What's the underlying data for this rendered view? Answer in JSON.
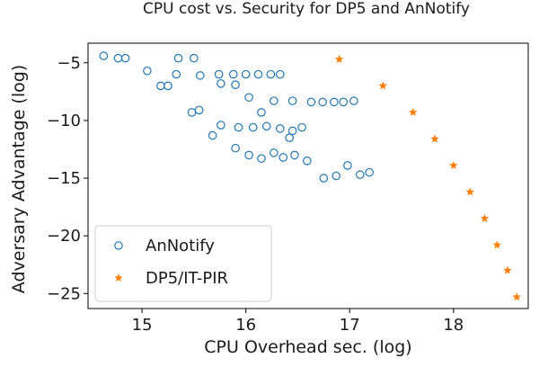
{
  "chart_data": {
    "type": "scatter",
    "title": "CPU cost vs. Security for DP5 and AnNotify",
    "xlabel": "CPU Overhead sec. (log)",
    "ylabel": "Adversary Advantage (log)",
    "xlim": [
      14.48,
      18.72
    ],
    "ylim": [
      -26.3,
      -3.3
    ],
    "xticks": [
      15,
      16,
      17,
      18
    ],
    "yticks": [
      -5,
      -10,
      -15,
      -20,
      -25
    ],
    "xtick_labels": [
      "15",
      "16",
      "17",
      "18"
    ],
    "ytick_labels": [
      "−5",
      "−10",
      "−15",
      "−20",
      "−25"
    ],
    "grid": false,
    "legend_position": "bottom-left",
    "series": [
      {
        "name": "AnNotify",
        "color": "#1f77b4",
        "marker": "open-circle",
        "points": [
          [
            14.63,
            -4.4
          ],
          [
            14.77,
            -4.6
          ],
          [
            14.84,
            -4.6
          ],
          [
            15.35,
            -4.6
          ],
          [
            15.5,
            -4.6
          ],
          [
            15.05,
            -5.7
          ],
          [
            15.18,
            -7.0
          ],
          [
            15.25,
            -7.0
          ],
          [
            15.33,
            -6.0
          ],
          [
            15.56,
            -6.1
          ],
          [
            15.74,
            -6.0
          ],
          [
            15.88,
            -6.0
          ],
          [
            16.0,
            -6.0
          ],
          [
            16.12,
            -6.0
          ],
          [
            16.24,
            -6.0
          ],
          [
            16.33,
            -6.0
          ],
          [
            15.76,
            -6.8
          ],
          [
            15.9,
            -6.9
          ],
          [
            15.48,
            -9.3
          ],
          [
            15.55,
            -9.1
          ],
          [
            16.03,
            -8.0
          ],
          [
            16.27,
            -8.3
          ],
          [
            16.45,
            -8.3
          ],
          [
            16.63,
            -8.4
          ],
          [
            16.74,
            -8.4
          ],
          [
            16.85,
            -8.4
          ],
          [
            16.94,
            -8.4
          ],
          [
            17.04,
            -8.3
          ],
          [
            16.15,
            -9.3
          ],
          [
            15.68,
            -11.3
          ],
          [
            15.76,
            -10.4
          ],
          [
            15.93,
            -10.6
          ],
          [
            16.07,
            -10.6
          ],
          [
            16.2,
            -10.5
          ],
          [
            16.33,
            -10.7
          ],
          [
            16.42,
            -11.5
          ],
          [
            16.45,
            -10.9
          ],
          [
            16.54,
            -10.6
          ],
          [
            15.9,
            -12.4
          ],
          [
            16.03,
            -13.0
          ],
          [
            16.15,
            -13.3
          ],
          [
            16.27,
            -12.8
          ],
          [
            16.36,
            -13.2
          ],
          [
            16.47,
            -13.0
          ],
          [
            16.59,
            -13.5
          ],
          [
            16.75,
            -15.0
          ],
          [
            16.87,
            -14.8
          ],
          [
            16.98,
            -13.9
          ],
          [
            17.1,
            -14.7
          ],
          [
            17.19,
            -14.5
          ]
        ]
      },
      {
        "name": "DP5/IT-PIR",
        "color": "#ff7f0e",
        "marker": "star",
        "points": [
          [
            16.9,
            -4.7
          ],
          [
            17.32,
            -7.0
          ],
          [
            17.61,
            -9.3
          ],
          [
            17.82,
            -11.6
          ],
          [
            18.0,
            -13.9
          ],
          [
            18.16,
            -16.2
          ],
          [
            18.3,
            -18.5
          ],
          [
            18.42,
            -20.8
          ],
          [
            18.52,
            -23.0
          ],
          [
            18.61,
            -25.3
          ]
        ]
      }
    ]
  }
}
